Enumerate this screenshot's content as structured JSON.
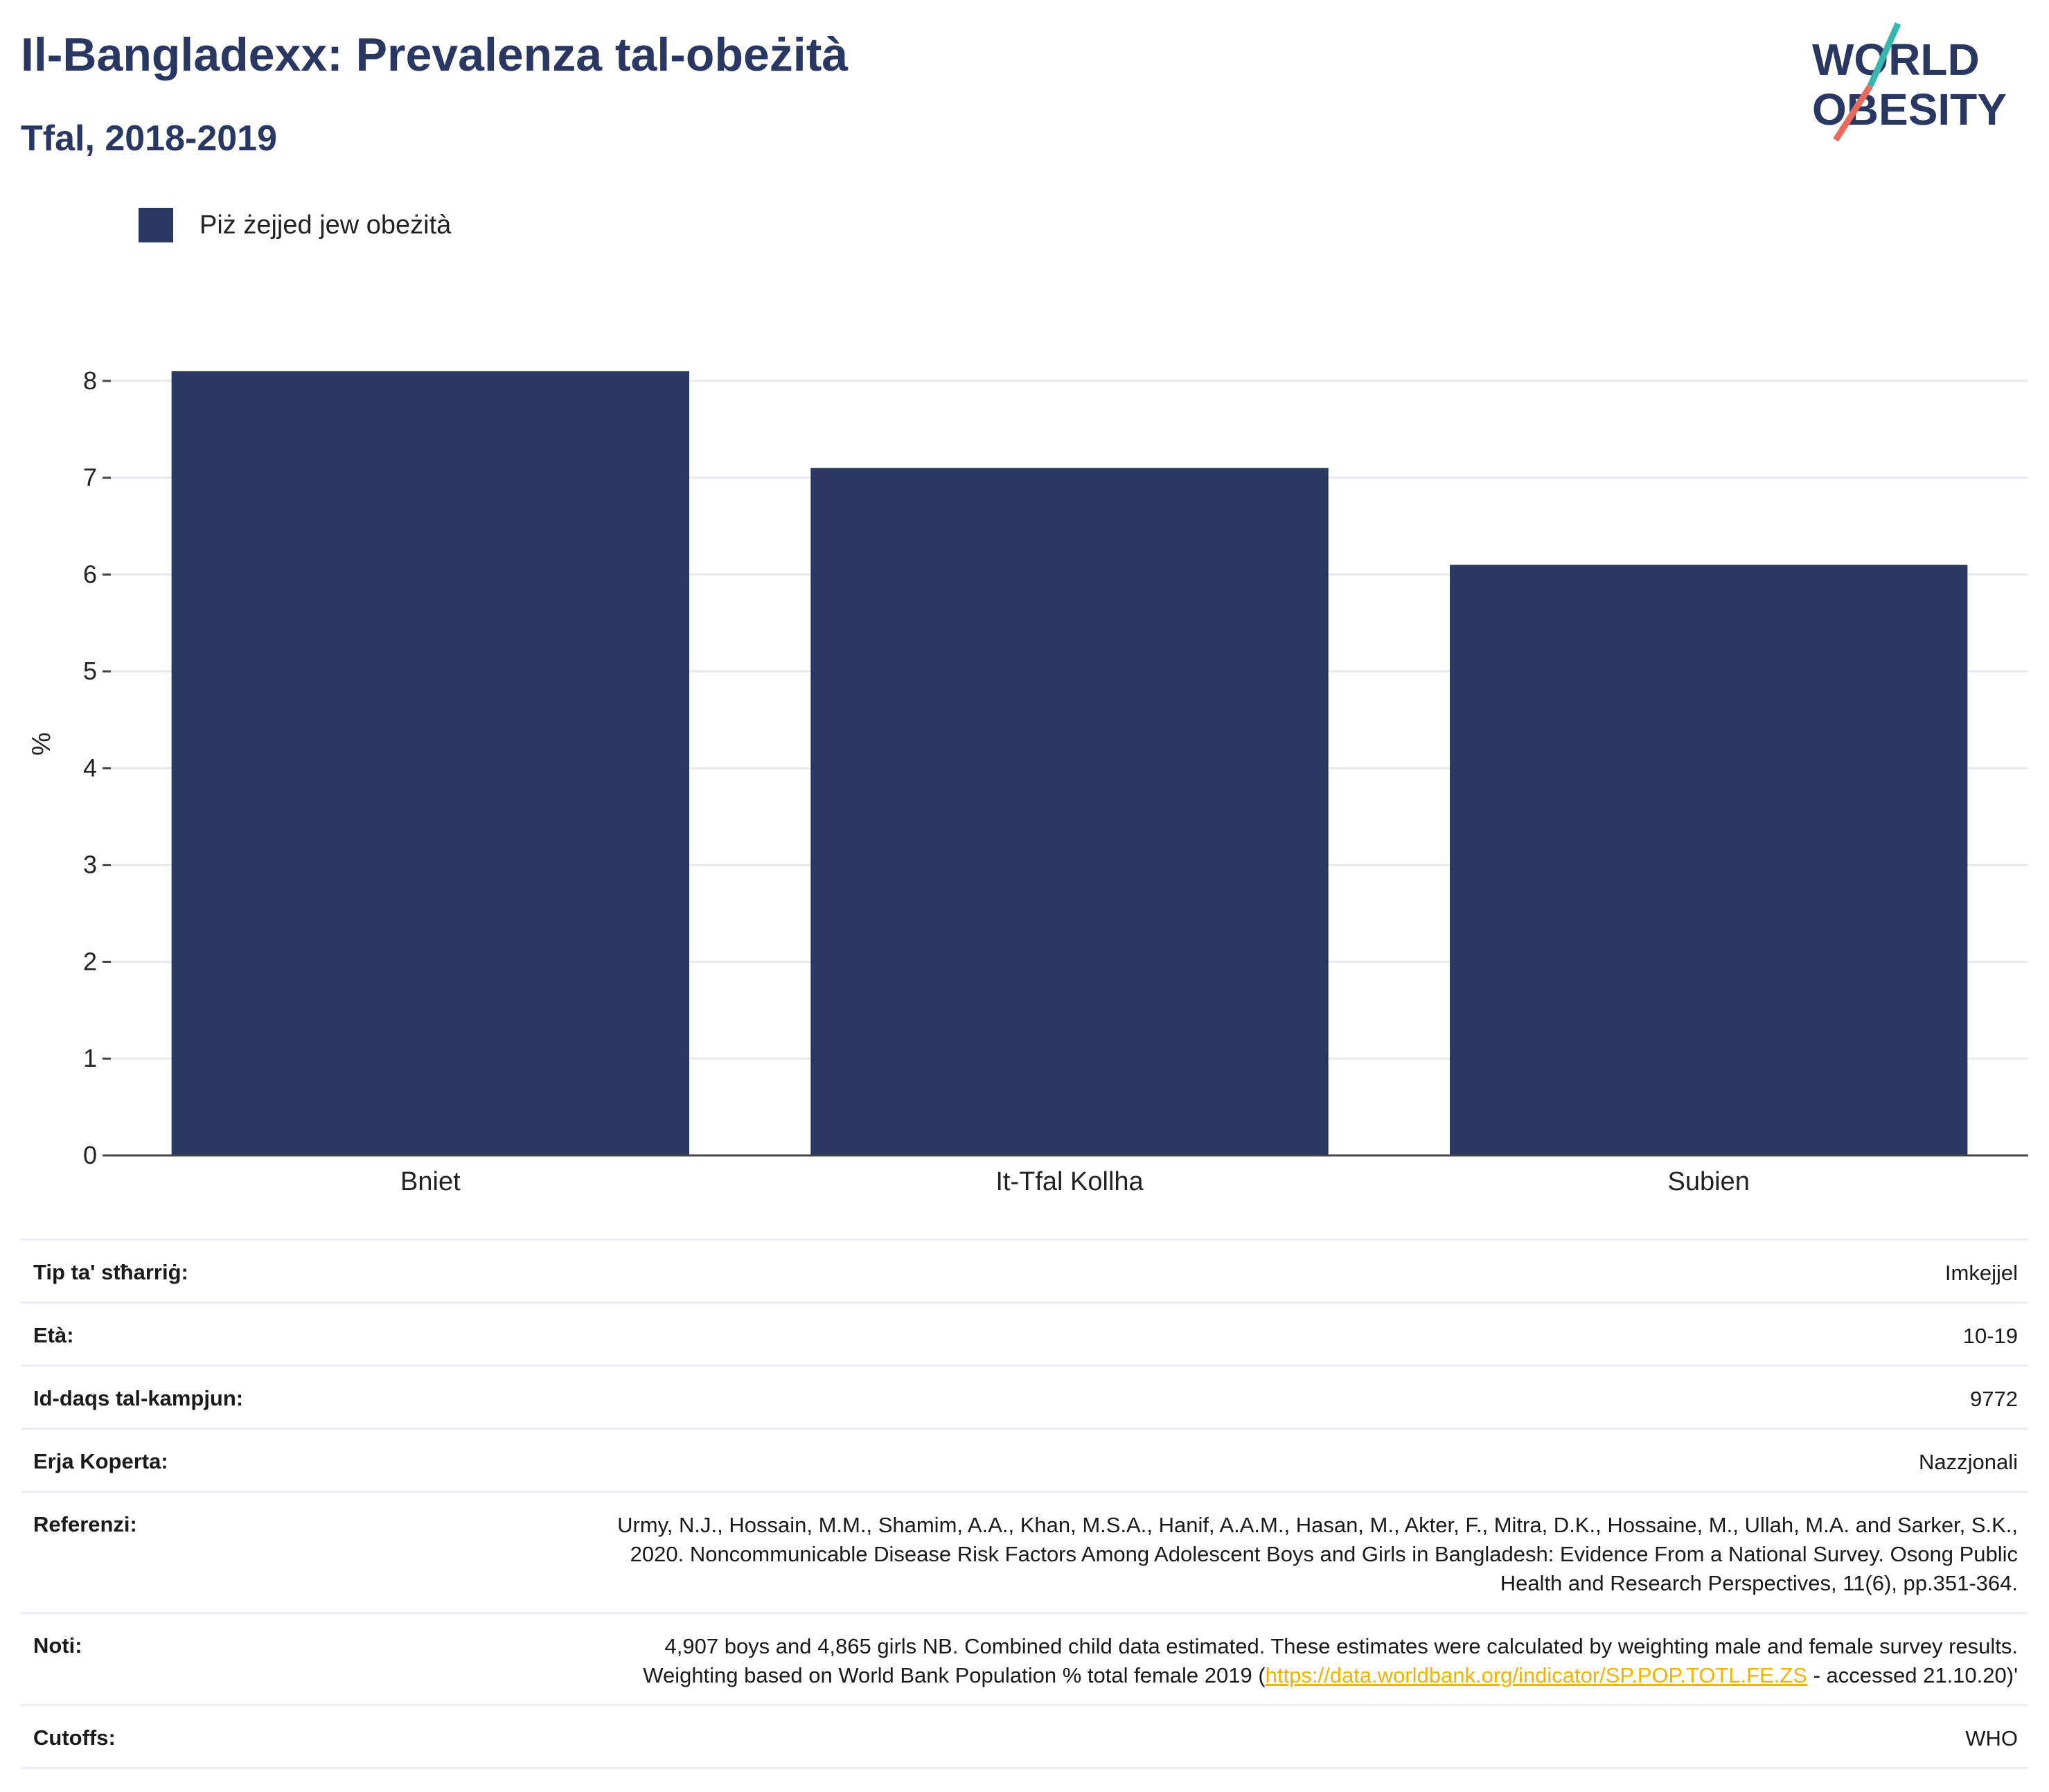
{
  "title": "Il-Bangladexx: Prevalenza tal-obeżità",
  "subtitle": "Tfal, 2018-2019",
  "logo": {
    "line1": "WORLD",
    "line2": "OBESITY",
    "colors": {
      "navy": "#2b3763",
      "teal": "#35b7b0",
      "coral": "#e86a5a"
    }
  },
  "legend": {
    "label": "Piż żejjed jew obeżità",
    "color": "#2b3763"
  },
  "chart_data": {
    "type": "bar",
    "categories": [
      "Bniet",
      "It-Tfal Kollha",
      "Subien"
    ],
    "series": [
      {
        "name": "Piż żejjed jew obeżità",
        "values": [
          8.1,
          7.1,
          6.1
        ],
        "color": "#2b3763"
      }
    ],
    "ylabel": "%",
    "ylim": [
      0,
      8.5
    ],
    "yticks": [
      0,
      1,
      2,
      3,
      4,
      5,
      6,
      7,
      8
    ],
    "grid": true,
    "legend_position": "top-left"
  },
  "meta": {
    "survey_type": {
      "label": "Tip ta' stħarriġ:",
      "value": "Imkejjel"
    },
    "age": {
      "label": "Età:",
      "value": "10-19"
    },
    "sample_size": {
      "label": "Id-daqs tal-kampjun:",
      "value": "9772"
    },
    "area_covered": {
      "label": "Erja Koperta:",
      "value": "Nazzjonali"
    },
    "references": {
      "label": "Referenzi:",
      "value": "Urmy, N.J., Hossain, M.M., Shamim, A.A., Khan, M.S.A., Hanif, A.A.M., Hasan, M., Akter, F., Mitra, D.K., Hossaine, M., Ullah, M.A. and Sarker, S.K., 2020. Noncommunicable Disease Risk Factors Among Adolescent Boys and Girls in Bangladesh: Evidence From a National Survey. Osong Public Health and Research Perspectives, 11(6), pp.351-364."
    },
    "notes": {
      "label": "Noti:",
      "value_before": "4,907 boys and 4,865 girls NB. Combined child data estimated. These estimates were calculated by weighting male and female survey results. Weighting based on World Bank Population % total female 2019 (",
      "link": "https://data.worldbank.org/indicator/SP.POP.TOTL.FE.ZS",
      "value_after": " - accessed 21.10.20)'"
    },
    "cutoffs": {
      "label": "Cutoffs:",
      "value": "WHO"
    }
  }
}
